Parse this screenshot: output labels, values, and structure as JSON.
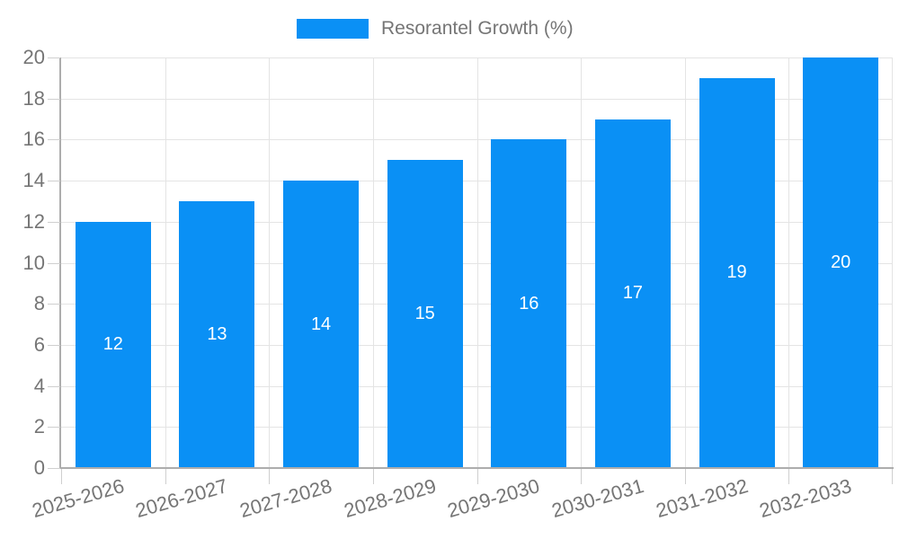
{
  "chart_data": {
    "type": "bar",
    "title": "",
    "series_name": "Resorantel Growth (%)",
    "categories": [
      "2025-2026",
      "2026-2027",
      "2027-2028",
      "2028-2029",
      "2029-2030",
      "2030-2031",
      "2031-2032",
      "2032-2033"
    ],
    "values": [
      12,
      13,
      14,
      15,
      16,
      17,
      19,
      20
    ],
    "bar_labels": [
      "12",
      "13",
      "14",
      "15",
      "16",
      "17",
      "19",
      "20"
    ],
    "xlabel": "",
    "ylabel": "",
    "ylim": [
      0,
      20
    ],
    "ytick_step": 2,
    "ytick_labels": [
      "0",
      "2",
      "4",
      "6",
      "8",
      "10",
      "12",
      "14",
      "16",
      "18",
      "20"
    ],
    "grid": true,
    "legend_position": "top-center",
    "colors": {
      "bar": "#0a90f5",
      "bar_label": "#ffffff",
      "grid": "#e4e4e4",
      "axis_line": "#adadad",
      "tick": "#cfcfcf",
      "axis_label": "#757575",
      "legend_text": "#757575"
    }
  }
}
